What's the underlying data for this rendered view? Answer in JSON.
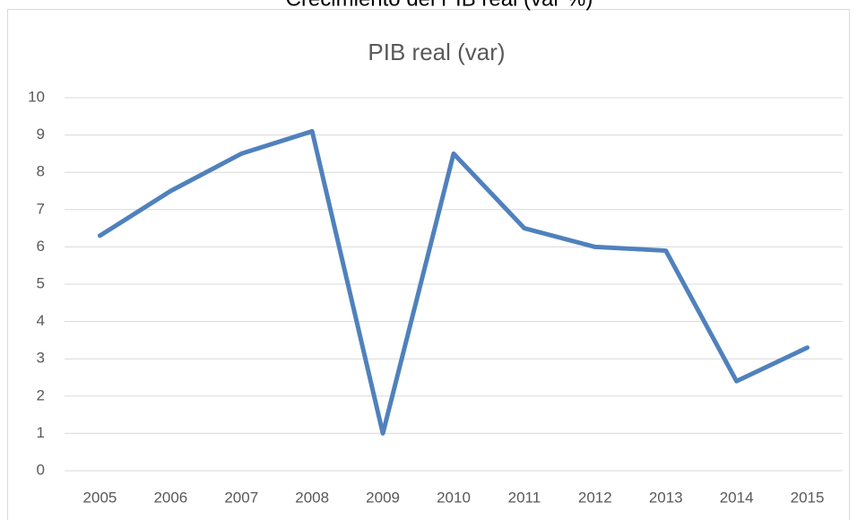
{
  "page_title": "Crecimiento del PIB real (var %)",
  "chart_data": {
    "type": "line",
    "title": "PIB real (var)",
    "categories": [
      "2005",
      "2006",
      "2007",
      "2008",
      "2009",
      "2010",
      "2011",
      "2012",
      "2013",
      "2014",
      "2015"
    ],
    "values": [
      6.3,
      7.5,
      8.5,
      9.1,
      1.0,
      8.5,
      6.5,
      6.0,
      5.9,
      2.4,
      3.3
    ],
    "color": "#4f81bd",
    "ylim": [
      0,
      10
    ],
    "yticks": [
      0,
      1,
      2,
      3,
      4,
      5,
      6,
      7,
      8,
      9,
      10
    ],
    "grid": true
  }
}
